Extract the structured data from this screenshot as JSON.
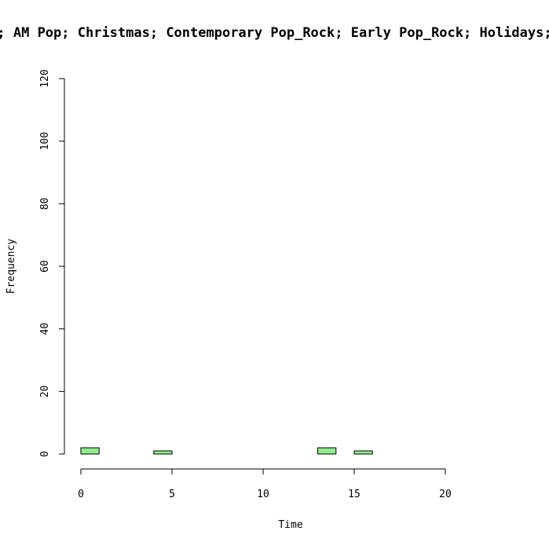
{
  "chart_data": {
    "type": "bar",
    "title": "; AM Pop; Christmas; Contemporary Pop_Rock; Early Pop_Rock; Holidays;",
    "xlabel": "Time",
    "ylabel": "Frequency",
    "xlim": [
      0,
      24
    ],
    "ylim": [
      0,
      120
    ],
    "x_ticks": [
      "0",
      "5",
      "10",
      "15",
      "20"
    ],
    "y_ticks": [
      "0",
      "20",
      "40",
      "60",
      "80",
      "100",
      "120"
    ],
    "bin_width": 1,
    "bins": [
      {
        "x0": 0,
        "x1": 1,
        "count": 2
      },
      {
        "x0": 1,
        "x1": 2,
        "count": 0
      },
      {
        "x0": 2,
        "x1": 3,
        "count": 0
      },
      {
        "x0": 3,
        "x1": 4,
        "count": 0
      },
      {
        "x0": 4,
        "x1": 5,
        "count": 1
      },
      {
        "x0": 5,
        "x1": 6,
        "count": 0
      },
      {
        "x0": 6,
        "x1": 7,
        "count": 0
      },
      {
        "x0": 7,
        "x1": 8,
        "count": 0
      },
      {
        "x0": 8,
        "x1": 9,
        "count": 0
      },
      {
        "x0": 9,
        "x1": 10,
        "count": 0
      },
      {
        "x0": 10,
        "x1": 11,
        "count": 0
      },
      {
        "x0": 11,
        "x1": 12,
        "count": 0
      },
      {
        "x0": 12,
        "x1": 13,
        "count": 0
      },
      {
        "x0": 13,
        "x1": 14,
        "count": 2
      },
      {
        "x0": 14,
        "x1": 15,
        "count": 0
      },
      {
        "x0": 15,
        "x1": 16,
        "count": 1
      },
      {
        "x0": 16,
        "x1": 17,
        "count": 0
      },
      {
        "x0": 17,
        "x1": 18,
        "count": 0
      },
      {
        "x0": 18,
        "x1": 19,
        "count": 0
      },
      {
        "x0": 19,
        "x1": 20,
        "count": 0
      },
      {
        "x0": 20,
        "x1": 21,
        "count": 0
      },
      {
        "x0": 21,
        "x1": 22,
        "count": 0
      },
      {
        "x0": 22,
        "x1": 23,
        "count": 0
      },
      {
        "x0": 23,
        "x1": 24,
        "count": 0
      }
    ],
    "bar_color": "#90ee90",
    "bar_border_color": "#000000",
    "grid": false,
    "legend": "none"
  }
}
